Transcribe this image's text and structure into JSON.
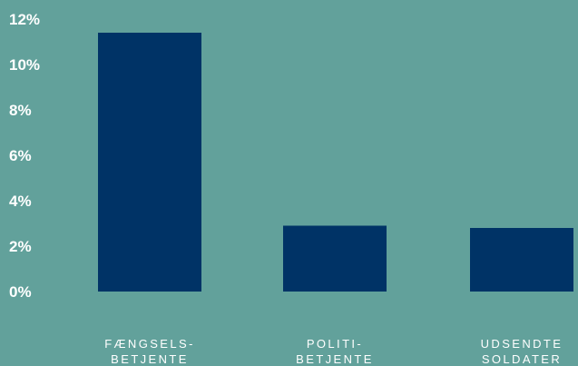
{
  "colors": {
    "background": "#62a19b",
    "bar": "#003366",
    "text": "#ffffff"
  },
  "chart_data": {
    "type": "bar",
    "title": "",
    "xlabel": "",
    "ylabel": "",
    "grid": false,
    "legend": "none",
    "ylim": [
      0,
      12
    ],
    "y_ticks": [
      0,
      2,
      4,
      6,
      8,
      10,
      12
    ],
    "y_tick_labels": [
      "0%",
      "2%",
      "4%",
      "6%",
      "8%",
      "10%",
      "12%"
    ],
    "categories": [
      [
        "FÆNGSELS-",
        "BETJENTE"
      ],
      [
        "POLITI-",
        "BETJENTE"
      ],
      [
        "UDSENDTE",
        "SOLDATER"
      ]
    ],
    "values": [
      11.4,
      2.9,
      2.8
    ],
    "unit": "%"
  }
}
